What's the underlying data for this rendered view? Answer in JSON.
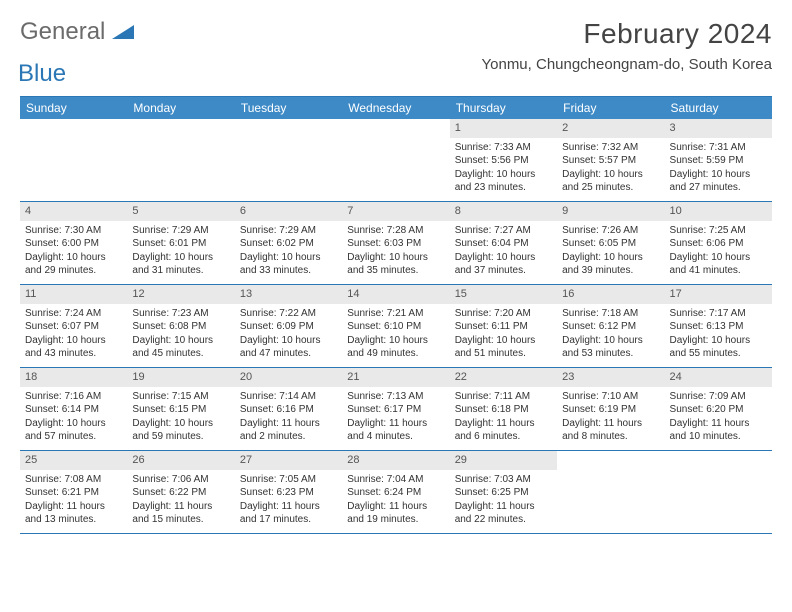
{
  "brand": {
    "part1": "General",
    "part2": "Blue"
  },
  "title": "February 2024",
  "location": "Yonmu, Chungcheongnam-do, South Korea",
  "colors": {
    "header_bar": "#3d8ac7",
    "rule": "#2b77b5",
    "day_shade": "#e9e9e9",
    "logo_gray": "#6b6b6b",
    "logo_blue": "#2b77b5"
  },
  "dayNames": [
    "Sunday",
    "Monday",
    "Tuesday",
    "Wednesday",
    "Thursday",
    "Friday",
    "Saturday"
  ],
  "weeks": [
    [
      {
        "n": "",
        "sr": "",
        "ss": "",
        "dl": ""
      },
      {
        "n": "",
        "sr": "",
        "ss": "",
        "dl": ""
      },
      {
        "n": "",
        "sr": "",
        "ss": "",
        "dl": ""
      },
      {
        "n": "",
        "sr": "",
        "ss": "",
        "dl": ""
      },
      {
        "n": "1",
        "sr": "Sunrise: 7:33 AM",
        "ss": "Sunset: 5:56 PM",
        "dl": "Daylight: 10 hours and 23 minutes."
      },
      {
        "n": "2",
        "sr": "Sunrise: 7:32 AM",
        "ss": "Sunset: 5:57 PM",
        "dl": "Daylight: 10 hours and 25 minutes."
      },
      {
        "n": "3",
        "sr": "Sunrise: 7:31 AM",
        "ss": "Sunset: 5:59 PM",
        "dl": "Daylight: 10 hours and 27 minutes."
      }
    ],
    [
      {
        "n": "4",
        "sr": "Sunrise: 7:30 AM",
        "ss": "Sunset: 6:00 PM",
        "dl": "Daylight: 10 hours and 29 minutes."
      },
      {
        "n": "5",
        "sr": "Sunrise: 7:29 AM",
        "ss": "Sunset: 6:01 PM",
        "dl": "Daylight: 10 hours and 31 minutes."
      },
      {
        "n": "6",
        "sr": "Sunrise: 7:29 AM",
        "ss": "Sunset: 6:02 PM",
        "dl": "Daylight: 10 hours and 33 minutes."
      },
      {
        "n": "7",
        "sr": "Sunrise: 7:28 AM",
        "ss": "Sunset: 6:03 PM",
        "dl": "Daylight: 10 hours and 35 minutes."
      },
      {
        "n": "8",
        "sr": "Sunrise: 7:27 AM",
        "ss": "Sunset: 6:04 PM",
        "dl": "Daylight: 10 hours and 37 minutes."
      },
      {
        "n": "9",
        "sr": "Sunrise: 7:26 AM",
        "ss": "Sunset: 6:05 PM",
        "dl": "Daylight: 10 hours and 39 minutes."
      },
      {
        "n": "10",
        "sr": "Sunrise: 7:25 AM",
        "ss": "Sunset: 6:06 PM",
        "dl": "Daylight: 10 hours and 41 minutes."
      }
    ],
    [
      {
        "n": "11",
        "sr": "Sunrise: 7:24 AM",
        "ss": "Sunset: 6:07 PM",
        "dl": "Daylight: 10 hours and 43 minutes."
      },
      {
        "n": "12",
        "sr": "Sunrise: 7:23 AM",
        "ss": "Sunset: 6:08 PM",
        "dl": "Daylight: 10 hours and 45 minutes."
      },
      {
        "n": "13",
        "sr": "Sunrise: 7:22 AM",
        "ss": "Sunset: 6:09 PM",
        "dl": "Daylight: 10 hours and 47 minutes."
      },
      {
        "n": "14",
        "sr": "Sunrise: 7:21 AM",
        "ss": "Sunset: 6:10 PM",
        "dl": "Daylight: 10 hours and 49 minutes."
      },
      {
        "n": "15",
        "sr": "Sunrise: 7:20 AM",
        "ss": "Sunset: 6:11 PM",
        "dl": "Daylight: 10 hours and 51 minutes."
      },
      {
        "n": "16",
        "sr": "Sunrise: 7:18 AM",
        "ss": "Sunset: 6:12 PM",
        "dl": "Daylight: 10 hours and 53 minutes."
      },
      {
        "n": "17",
        "sr": "Sunrise: 7:17 AM",
        "ss": "Sunset: 6:13 PM",
        "dl": "Daylight: 10 hours and 55 minutes."
      }
    ],
    [
      {
        "n": "18",
        "sr": "Sunrise: 7:16 AM",
        "ss": "Sunset: 6:14 PM",
        "dl": "Daylight: 10 hours and 57 minutes."
      },
      {
        "n": "19",
        "sr": "Sunrise: 7:15 AM",
        "ss": "Sunset: 6:15 PM",
        "dl": "Daylight: 10 hours and 59 minutes."
      },
      {
        "n": "20",
        "sr": "Sunrise: 7:14 AM",
        "ss": "Sunset: 6:16 PM",
        "dl": "Daylight: 11 hours and 2 minutes."
      },
      {
        "n": "21",
        "sr": "Sunrise: 7:13 AM",
        "ss": "Sunset: 6:17 PM",
        "dl": "Daylight: 11 hours and 4 minutes."
      },
      {
        "n": "22",
        "sr": "Sunrise: 7:11 AM",
        "ss": "Sunset: 6:18 PM",
        "dl": "Daylight: 11 hours and 6 minutes."
      },
      {
        "n": "23",
        "sr": "Sunrise: 7:10 AM",
        "ss": "Sunset: 6:19 PM",
        "dl": "Daylight: 11 hours and 8 minutes."
      },
      {
        "n": "24",
        "sr": "Sunrise: 7:09 AM",
        "ss": "Sunset: 6:20 PM",
        "dl": "Daylight: 11 hours and 10 minutes."
      }
    ],
    [
      {
        "n": "25",
        "sr": "Sunrise: 7:08 AM",
        "ss": "Sunset: 6:21 PM",
        "dl": "Daylight: 11 hours and 13 minutes."
      },
      {
        "n": "26",
        "sr": "Sunrise: 7:06 AM",
        "ss": "Sunset: 6:22 PM",
        "dl": "Daylight: 11 hours and 15 minutes."
      },
      {
        "n": "27",
        "sr": "Sunrise: 7:05 AM",
        "ss": "Sunset: 6:23 PM",
        "dl": "Daylight: 11 hours and 17 minutes."
      },
      {
        "n": "28",
        "sr": "Sunrise: 7:04 AM",
        "ss": "Sunset: 6:24 PM",
        "dl": "Daylight: 11 hours and 19 minutes."
      },
      {
        "n": "29",
        "sr": "Sunrise: 7:03 AM",
        "ss": "Sunset: 6:25 PM",
        "dl": "Daylight: 11 hours and 22 minutes."
      },
      {
        "n": "",
        "sr": "",
        "ss": "",
        "dl": ""
      },
      {
        "n": "",
        "sr": "",
        "ss": "",
        "dl": ""
      }
    ]
  ]
}
